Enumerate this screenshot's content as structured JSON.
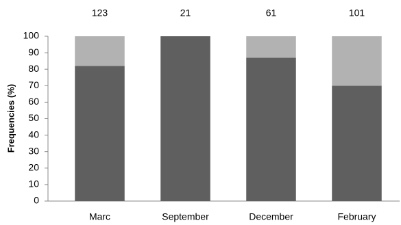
{
  "chart_data": {
    "type": "stacked_bar",
    "y_label": "Frequencies (%)",
    "categories": [
      "Marc",
      "September",
      "December",
      "February"
    ],
    "annotations": [
      123,
      21,
      61,
      101
    ],
    "series": [
      {
        "color": "#5f5f5f",
        "values": [
          82,
          100,
          87,
          70
        ]
      },
      {
        "color": "#b2b2b2",
        "values": [
          18,
          0,
          13,
          30
        ]
      }
    ],
    "ylim": [
      0,
      100
    ],
    "yticks": [
      0,
      10,
      20,
      30,
      40,
      50,
      60,
      70,
      80,
      90,
      100
    ],
    "grid": false
  }
}
